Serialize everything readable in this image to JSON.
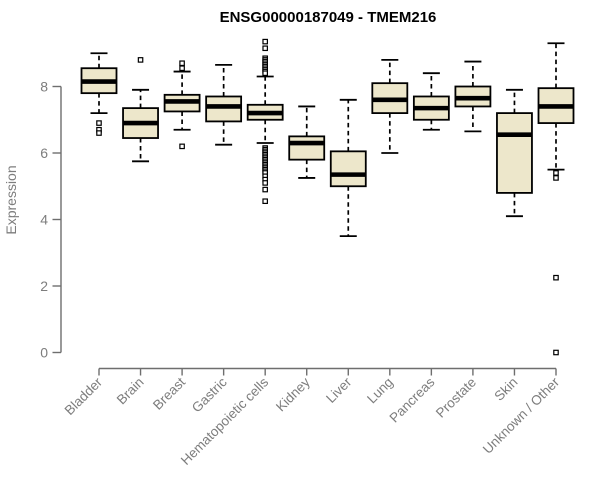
{
  "chart_data": {
    "type": "boxplot",
    "title": "ENSG00000187049 - TMEM216",
    "xlabel": "",
    "ylabel": "Expression",
    "yticks": [
      "0",
      "2",
      "4",
      "6",
      "8"
    ],
    "ylim": [
      0,
      9.6
    ],
    "grid": false,
    "legend": "none",
    "colors": {
      "box_fill": "#ede7cb",
      "box_stroke": "#000000",
      "median": "#000000",
      "axis": "#6e6e6e",
      "tick_text": "#7d7d7d",
      "title_text": "#000000",
      "background": "#ffffff"
    },
    "categories": [
      "Bladder",
      "Brain",
      "Breast",
      "Gastric",
      "Hematopoietic cells",
      "Kidney",
      "Liver",
      "Lung",
      "Pancreas",
      "Prostate",
      "Skin",
      "Unknown / Other"
    ],
    "series": [
      {
        "category": "Bladder",
        "whisker_low": 7.2,
        "q1": 7.8,
        "median": 8.15,
        "q3": 8.55,
        "whisker_high": 9.0,
        "outliers": [
          6.9,
          6.7,
          6.6
        ]
      },
      {
        "category": "Brain",
        "whisker_low": 5.75,
        "q1": 6.45,
        "median": 6.9,
        "q3": 7.35,
        "whisker_high": 7.9,
        "outliers": [
          8.8
        ]
      },
      {
        "category": "Breast",
        "whisker_low": 6.7,
        "q1": 7.25,
        "median": 7.55,
        "q3": 7.75,
        "whisker_high": 8.45,
        "outliers": [
          8.7,
          8.55,
          6.2
        ]
      },
      {
        "category": "Gastric",
        "whisker_low": 6.25,
        "q1": 6.95,
        "median": 7.4,
        "q3": 7.7,
        "whisker_high": 8.65,
        "outliers": []
      },
      {
        "category": "Hematopoietic cells",
        "whisker_low": 6.3,
        "q1": 7.0,
        "median": 7.2,
        "q3": 7.45,
        "whisker_high": 8.3,
        "outliers": [
          9.35,
          9.15,
          8.85,
          8.8,
          8.75,
          8.7,
          8.65,
          8.6,
          8.55,
          8.5,
          8.45,
          8.4,
          6.15,
          6.1,
          6.05,
          6.0,
          5.95,
          5.9,
          5.85,
          5.8,
          5.75,
          5.7,
          5.65,
          5.6,
          5.55,
          5.5,
          5.45,
          5.4,
          5.3,
          5.2,
          5.1,
          4.9,
          4.55
        ]
      },
      {
        "category": "Kidney",
        "whisker_low": 5.25,
        "q1": 5.8,
        "median": 6.3,
        "q3": 6.5,
        "whisker_high": 7.4,
        "outliers": []
      },
      {
        "category": "Liver",
        "whisker_low": 3.5,
        "q1": 5.0,
        "median": 5.35,
        "q3": 6.05,
        "whisker_high": 7.6,
        "outliers": []
      },
      {
        "category": "Lung",
        "whisker_low": 6.0,
        "q1": 7.2,
        "median": 7.6,
        "q3": 8.1,
        "whisker_high": 8.8,
        "outliers": []
      },
      {
        "category": "Pancreas",
        "whisker_low": 6.7,
        "q1": 7.0,
        "median": 7.35,
        "q3": 7.7,
        "whisker_high": 8.4,
        "outliers": []
      },
      {
        "category": "Prostate",
        "whisker_low": 6.65,
        "q1": 7.4,
        "median": 7.65,
        "q3": 8.0,
        "whisker_high": 8.75,
        "outliers": []
      },
      {
        "category": "Skin",
        "whisker_low": 4.1,
        "q1": 4.8,
        "median": 6.55,
        "q3": 7.2,
        "whisker_high": 7.9,
        "outliers": []
      },
      {
        "category": "Unknown / Other",
        "whisker_low": 5.5,
        "q1": 6.9,
        "median": 7.4,
        "q3": 7.95,
        "whisker_high": 9.3,
        "outliers": [
          5.4,
          5.25,
          2.25,
          0.0
        ]
      }
    ]
  }
}
